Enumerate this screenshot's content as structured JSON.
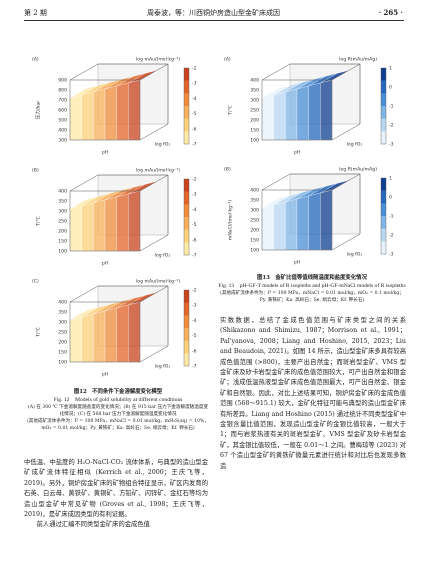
{
  "header": {
    "issue": "第 2 期",
    "running_title": "周泰波，等：川西铜炉房造山型金矿床成因",
    "page": "· 265 ·"
  },
  "figure12": {
    "panels": [
      {
        "label": "(A)",
        "colorbar_title": "log mAu/(mol·kg⁻¹)",
        "y_title": "压力/bar",
        "x_titles": [
          "pH",
          "log fO₂"
        ],
        "y_ticks": [
          "900",
          "800",
          "700",
          "600",
          "500",
          "400",
          "300"
        ],
        "colorbar_ticks": [
          "-2",
          "-3",
          "-4",
          "-5",
          "-6",
          "-7"
        ]
      },
      {
        "label": "(B)",
        "colorbar_title": "log mAu/(mol·kg⁻¹)",
        "y_title": "T/℃",
        "x_titles": [
          "pH",
          "log fO₂"
        ],
        "y_ticks": [
          "400",
          "350",
          "300",
          "250",
          "200",
          "150",
          "100"
        ],
        "colorbar_ticks": [
          "-2",
          "-3",
          "-4",
          "-5",
          "-6",
          "-7"
        ]
      },
      {
        "label": "(C)",
        "colorbar_title": "log mAu/(mol·kg⁻¹)",
        "y_title": "T/℃",
        "x_titles": [
          "pH",
          "log fO₂"
        ],
        "y_ticks": [
          "400",
          "350",
          "300",
          "250",
          "200",
          "150",
          "100"
        ],
        "colorbar_ticks": [
          "-2",
          "-3",
          "-4",
          "-5",
          "-6",
          "-7"
        ]
      }
    ],
    "caption_cn": "图12　不同条件下金溶解度变化模型",
    "caption_en": "Fig. 12　Models of gold solubility at different conditions",
    "note_cn": "(A) 在 300 ℃ 下金溶解度随盐度的变化情况；(B) 在 915 bar 压力下金溶解度随温度变化情况；(C) 在 568 bar 压力下金溶解度随温度变化情况",
    "note_conditions": "(其他成矿流体条件为：P = 100 MPa，mNaCl = 0.01 mol/kg，mH₂S(aq) = 10%，mO₂ = 0.01 mol/kg；Py. 黄铁矿；Ka. 高岭石；Se. 绢云母；Kf. 钾长石)"
  },
  "figure13": {
    "panels": [
      {
        "label": "(A)",
        "colorbar_title": "log R(mAu/mAg)",
        "y_title": "T/℃",
        "x_titles": [
          "pH",
          "log fO₂"
        ],
        "y_ticks": [
          "400",
          "350",
          "300",
          "250",
          "200",
          "150",
          "100"
        ],
        "colorbar_ticks": [
          "1",
          "0",
          "-1",
          "-2",
          "-3"
        ]
      },
      {
        "label": "(B)",
        "colorbar_title": "log R(mAu/mAg)",
        "y_title": "mNaCl/(mol·kg⁻¹)",
        "x_titles": [
          "pH",
          "log fO₂"
        ],
        "y_ticks": [
          "400",
          "350",
          "300",
          "250",
          "200",
          "150",
          "100"
        ],
        "colorbar_ticks": [
          "1",
          "0",
          "-1",
          "-2",
          "-3"
        ]
      }
    ],
    "caption_cn": "图13　金矿比值等值线随温度和盐度变化情况",
    "caption_en": "Fig. 13　pH-GF-T models of R isopleths and pH-GF-mNaCl models of R isopleths",
    "note_conditions": "(其他成矿流体条件为：P = 100 MPa，mNaCl = 0.01 mol/kg，mO₂ = 0.1 mol/kg；Py. 黄铁矿；Ka. 高岭石；Se. 绢云母；Kf. 钾长石)"
  },
  "body": {
    "left_paragraphs": [
      "中低温、中盐度的 H₂O-NaCl-CO₂ 流体体系，与典型的造山型金矿成矿流体特征相似 (Kerrich et al., 2000；王庆飞等，2019)。另外，铜炉房金矿床的矿物组合特征显示，矿区内发育的石英、白云母、黄铁矿、黄铜矿、方铅矿、闪锌矿、金红石等均为造山型金矿中常见矿物 (Groves et al., 1998；王庆飞等，2019)，是矿床成因类型的有利证据。",
      "前人通过汇编不同类型金矿床的金成色值"
    ],
    "right_paragraphs": [
      "实数数据，总结了金成色值范围与矿床类型之间的关系 (Shikazono and Shimizu, 1987；Morrison et al., 1991；Pal'yanova, 2008；Liang and Hoshino, 2015, 2023；Liu and Beaudoin, 2021)。如图 14 所示，造山型金矿床多具有较高成色值范围 (>800)，主要产出自然金；而斑岩型金矿、VMS 型金矿床及矽卡岩型金矿床的成色值范围较大，可产出自然金和银金矿；浅成低温热液型金矿床成色值范围最大，可产出自然金、银金矿和自然银。因此，对比上述结果可知，铜炉房金矿床的金成色值范围 (568～915.1) 较大，金矿化特征可能与典型的造山型金矿床有所差异。Liang and Hoshino (2015) 通过统计不同类型金矿中金银含量比值范围，发现造山型金矿的金银比值较高，一般大于 1；而与岩浆热液有关的斑岩型金矿、VMS 型金矿及矽卡岩型金矿，其金银比值较低，一般在 0.01～1 之间。曹梅琼等 (2023) 对 67 个造山型金矿的黄铁矿微量元素进行统计和对比后也发现多数造"
    ]
  }
}
